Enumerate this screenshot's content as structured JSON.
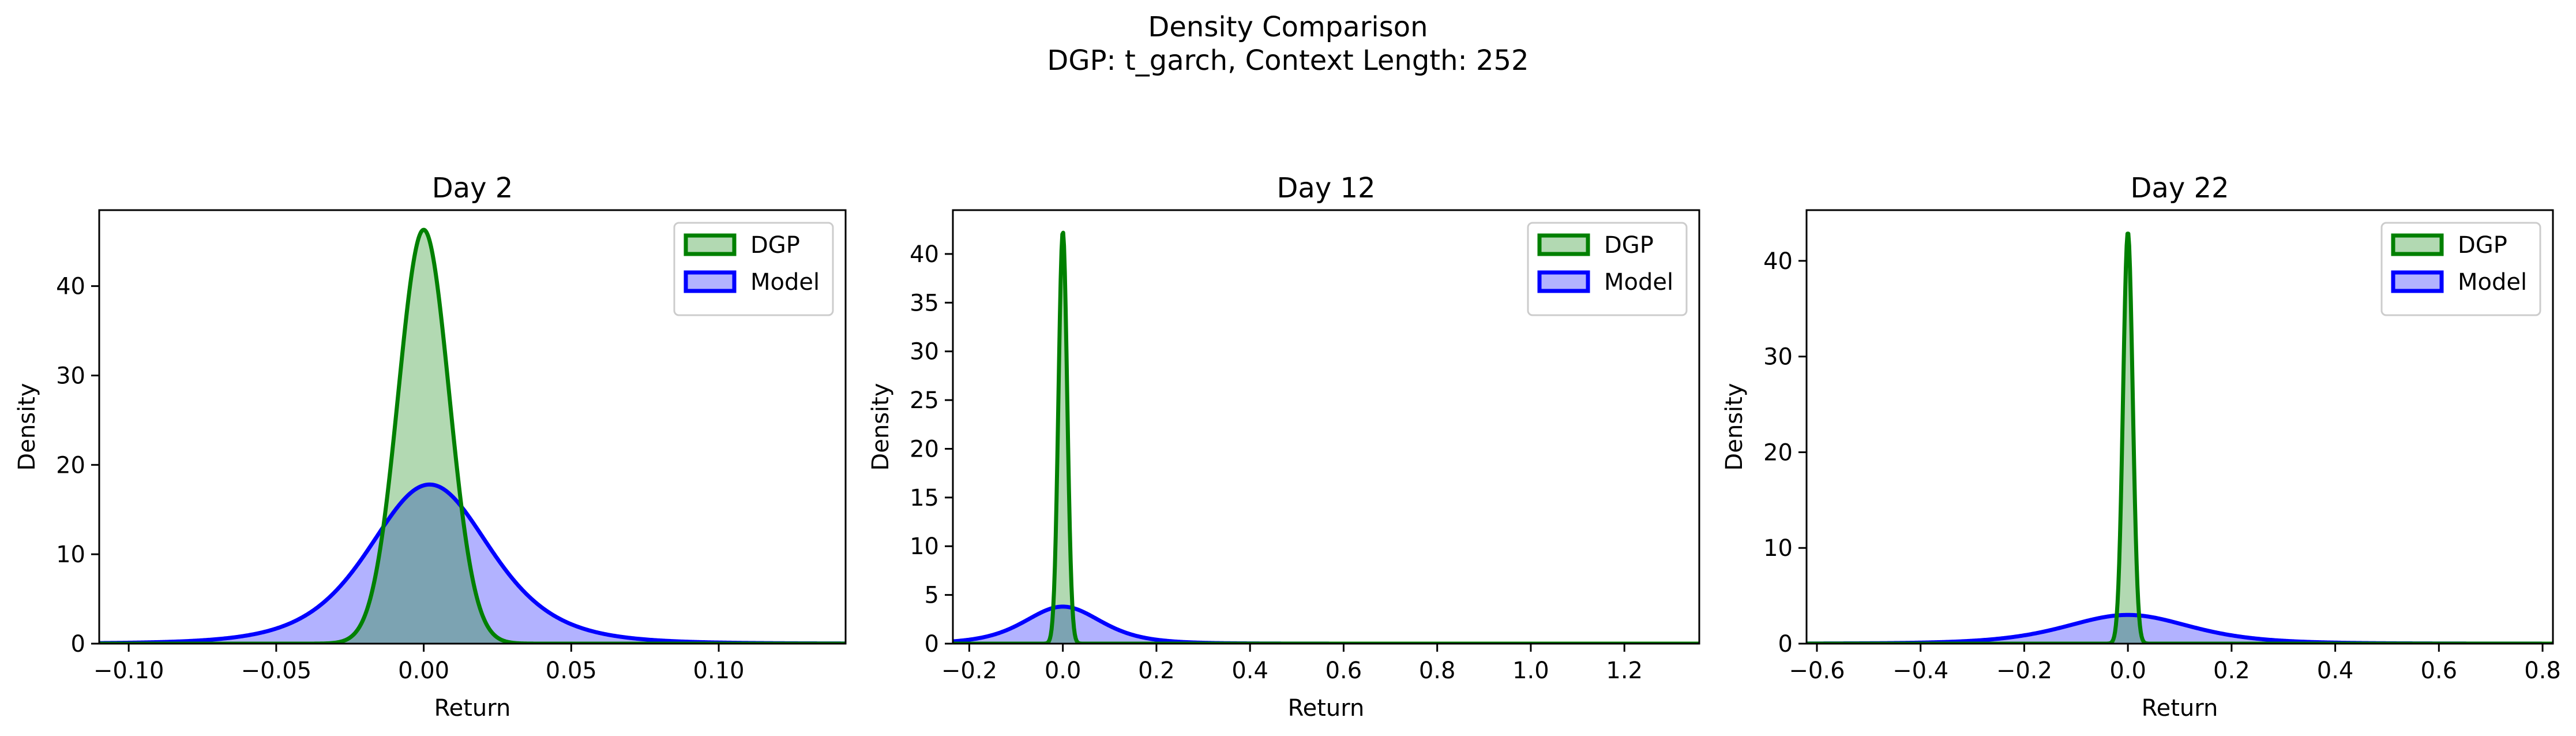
{
  "figure": {
    "title_line1": "Density Comparison",
    "title_line2": "DGP: t_garch, Context Length: 252"
  },
  "colors": {
    "dgp_line": "#008000",
    "dgp_fill": "#008000",
    "model_line": "#0000ff",
    "model_fill": "#0000ff"
  },
  "chart_data": [
    {
      "type": "area",
      "title": "Day 2",
      "xlabel": "Return",
      "ylabel": "Density",
      "xlim": [
        -0.11,
        0.143
      ],
      "ylim": [
        0,
        48.5
      ],
      "xticks": [
        -0.1,
        -0.05,
        0.0,
        0.05,
        0.1
      ],
      "xtick_labels": [
        "−0.10",
        "−0.05",
        "0.00",
        "0.05",
        "0.10"
      ],
      "yticks": [
        0,
        10,
        20,
        30,
        40
      ],
      "ytick_labels": [
        "0",
        "10",
        "20",
        "30",
        "40"
      ],
      "legend": "top-right",
      "series": [
        {
          "name": "DGP",
          "peak": 46.3,
          "center": 0.0,
          "std": 0.0086,
          "kind": "normal"
        },
        {
          "name": "Model",
          "peak": 17.8,
          "center": 0.002,
          "std": 0.0213,
          "kind": "t5"
        }
      ]
    },
    {
      "type": "area",
      "title": "Day 12",
      "xlabel": "Return",
      "ylabel": "Density",
      "xlim": [
        -0.235,
        1.36
      ],
      "ylim": [
        0,
        44.5
      ],
      "xticks": [
        -0.2,
        0.0,
        0.2,
        0.4,
        0.6,
        0.8,
        1.0,
        1.2
      ],
      "xtick_labels": [
        "−0.2",
        "0.0",
        "0.2",
        "0.4",
        "0.6",
        "0.8",
        "1.0",
        "1.2"
      ],
      "yticks": [
        0,
        5,
        10,
        15,
        20,
        25,
        30,
        35,
        40
      ],
      "ytick_labels": [
        "0",
        "5",
        "10",
        "15",
        "20",
        "25",
        "30",
        "35",
        "40"
      ],
      "legend": "top-right",
      "series": [
        {
          "name": "DGP",
          "peak": 42.3,
          "center": 0.0,
          "std": 0.0093,
          "kind": "normal"
        },
        {
          "name": "Model",
          "peak": 3.8,
          "center": 0.0,
          "std": 0.085,
          "kind": "t5"
        }
      ]
    },
    {
      "type": "area",
      "title": "Day 22",
      "xlabel": "Return",
      "ylabel": "Density",
      "xlim": [
        -0.62,
        0.82
      ],
      "ylim": [
        0,
        45.3
      ],
      "xticks": [
        -0.6,
        -0.4,
        -0.2,
        0.0,
        0.2,
        0.4,
        0.6,
        0.8
      ],
      "xtick_labels": [
        "−0.6",
        "−0.4",
        "−0.2",
        "0.0",
        "0.2",
        "0.4",
        "0.6",
        "0.8"
      ],
      "yticks": [
        0,
        10,
        20,
        30,
        40
      ],
      "ytick_labels": [
        "0",
        "10",
        "20",
        "30",
        "40"
      ],
      "legend": "top-right",
      "series": [
        {
          "name": "DGP",
          "peak": 43.0,
          "center": 0.0,
          "std": 0.0093,
          "kind": "normal"
        },
        {
          "name": "Model",
          "peak": 3.0,
          "center": 0.0,
          "std": 0.125,
          "kind": "t5"
        }
      ]
    }
  ]
}
